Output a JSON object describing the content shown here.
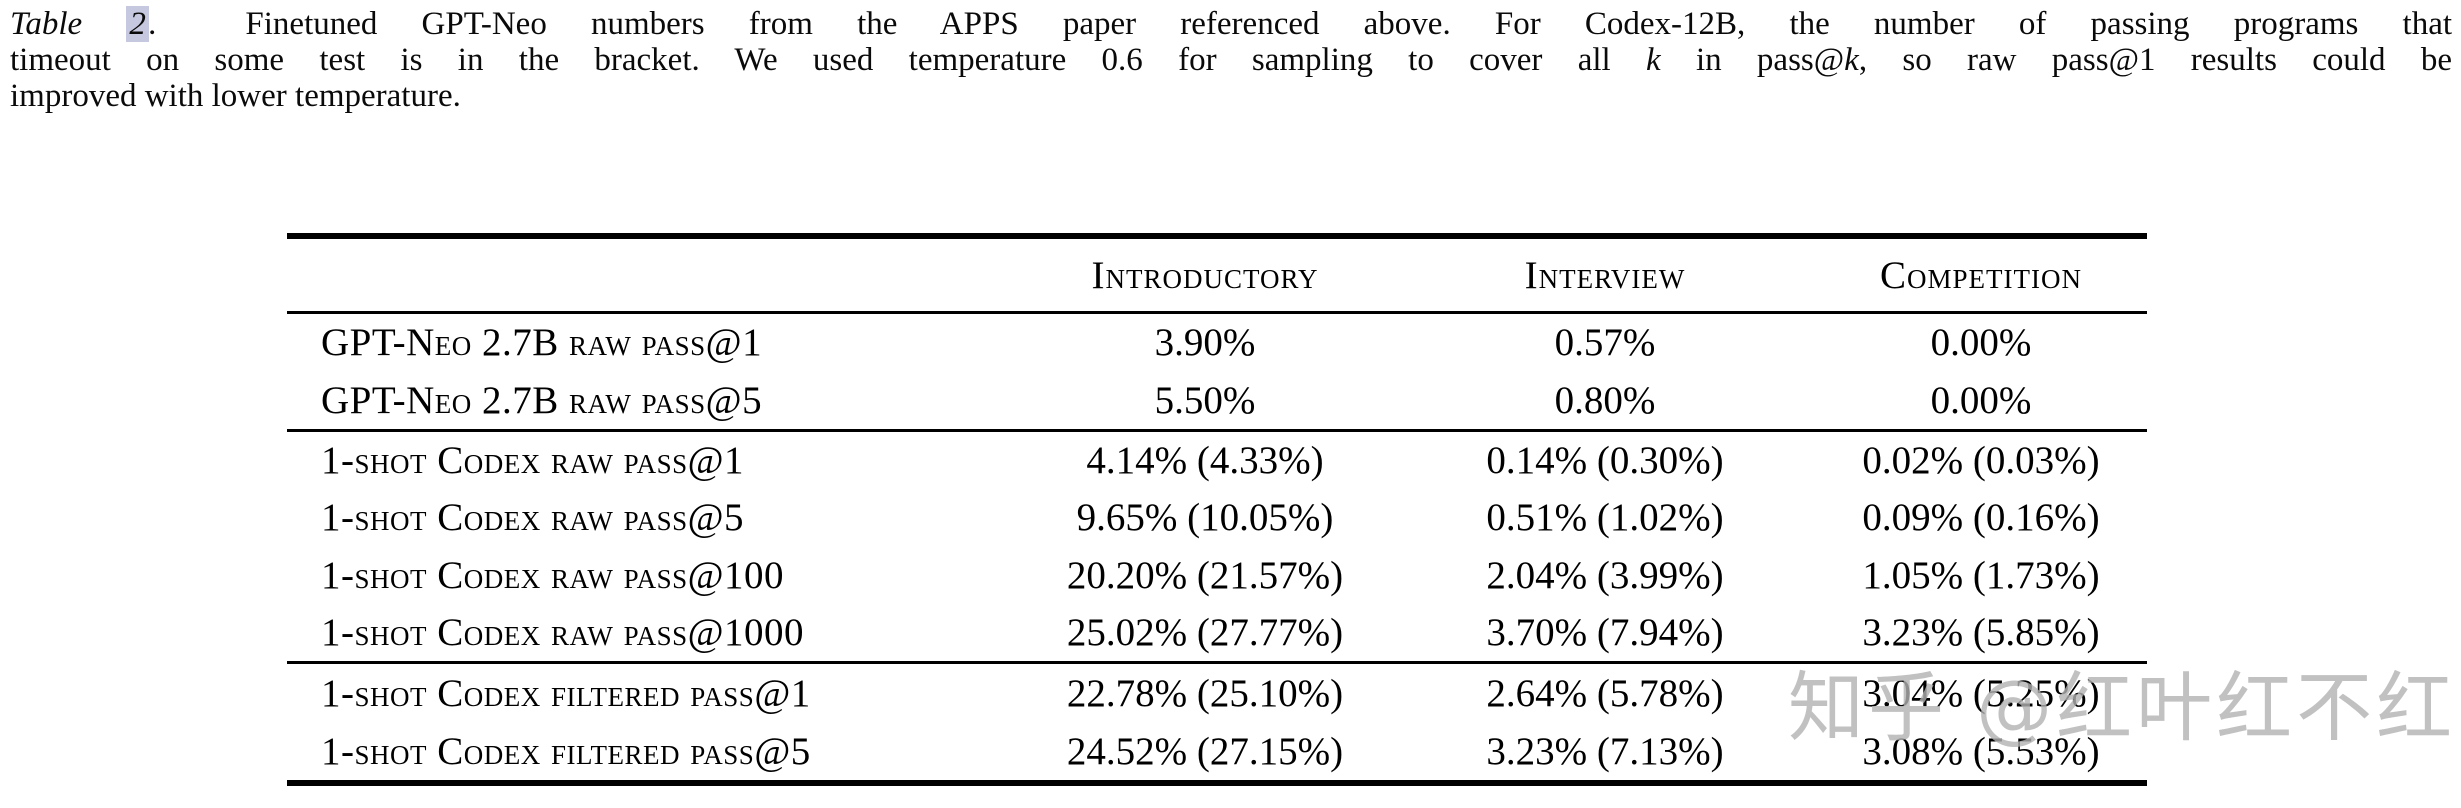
{
  "caption": {
    "line1": {
      "table_label": "Table ",
      "table_number": "2",
      "after_number": ".",
      "text": "  Finetuned GPT-Neo numbers from the APPS paper referenced above. For Codex-12B, the number of passing programs that"
    },
    "line2": {
      "pre": "timeout on some test is in the bracket. We used temperature 0.6 for sampling to cover all ",
      "k1": "k",
      "mid": " in pass@",
      "k2": "k",
      "post": ", so raw pass@1 results could be"
    },
    "line3": "improved with lower temperature.",
    "highlight_color": "#c5c8de"
  },
  "table": {
    "columns": [
      "",
      "Introductory",
      "Interview",
      "Competition"
    ],
    "sections": [
      {
        "rows": [
          {
            "label": "GPT-Neo 2.7B raw pass@1",
            "values": [
              "3.90%",
              "0.57%",
              "0.00%"
            ]
          },
          {
            "label": "GPT-Neo 2.7B raw pass@5",
            "values": [
              "5.50%",
              "0.80%",
              "0.00%"
            ]
          }
        ]
      },
      {
        "rows": [
          {
            "label": "1-shot Codex raw pass@1",
            "values": [
              "4.14% (4.33%)",
              "0.14% (0.30%)",
              "0.02% (0.03%)"
            ]
          },
          {
            "label": "1-shot Codex raw pass@5",
            "values": [
              "9.65% (10.05%)",
              "0.51% (1.02%)",
              "0.09% (0.16%)"
            ]
          },
          {
            "label": "1-shot Codex raw pass@100",
            "values": [
              "20.20% (21.57%)",
              "2.04% (3.99%)",
              "1.05% (1.73%)"
            ]
          },
          {
            "label": "1-shot Codex raw pass@1000",
            "values": [
              "25.02% (27.77%)",
              "3.70% (7.94%)",
              "3.23% (5.85%)"
            ]
          }
        ]
      },
      {
        "rows": [
          {
            "label": "1-shot Codex filtered pass@1",
            "values": [
              "22.78% (25.10%)",
              "2.64% (5.78%)",
              "3.04% (5.25%)"
            ]
          },
          {
            "label": "1-shot Codex filtered pass@5",
            "values": [
              "24.52% (27.15%)",
              "3.23% (7.13%)",
              "3.08% (5.53%)"
            ]
          }
        ]
      }
    ],
    "rule_color": "#000000"
  },
  "watermark": {
    "text": "知乎 @红叶红不红",
    "color": "#b2b2b2"
  }
}
